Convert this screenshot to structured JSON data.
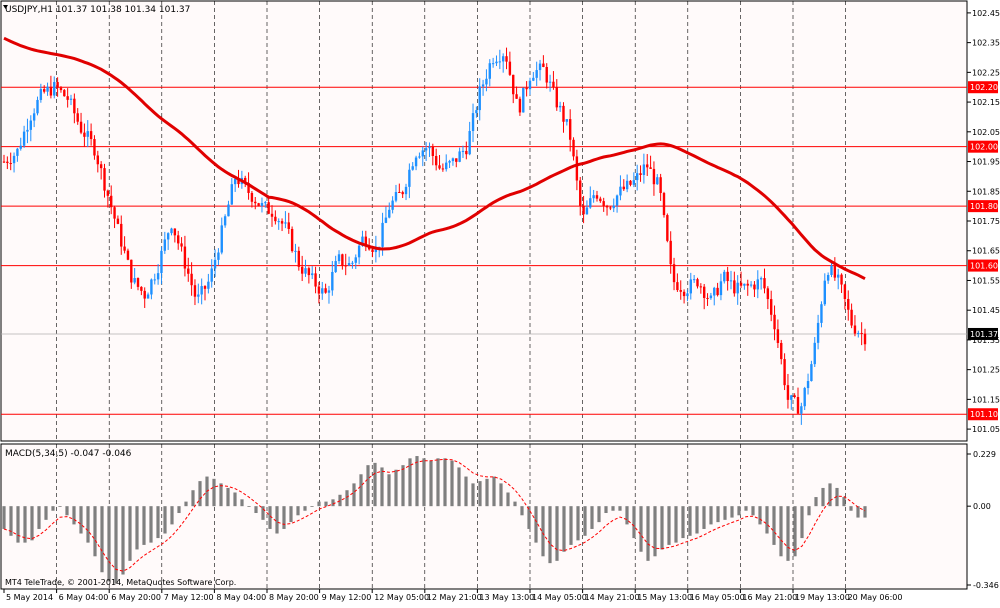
{
  "symbol_header": "USDJPY,H1  101.37 101.38 101.34 101.37",
  "macd_header": "MACD(5,34,5) -0.047 -0.046",
  "copyright": "MT4 TeleTrade, © 2001-2014, MetaQuotes Software Corp.",
  "colors": {
    "background": "#fffafa",
    "bull_candle": "#1e90ff",
    "bear_candle": "#ff0000",
    "ma_line": "#e00000",
    "level_line": "#ff0000",
    "grid": "#000000",
    "macd_hist": "#7f7f7f",
    "macd_signal": "#ff0000"
  },
  "chart_data": [
    {
      "type": "candlestick",
      "y_ticks": [
        "102.45",
        "102.35",
        "102.25",
        "102.15",
        "102.05",
        "101.95",
        "101.85",
        "101.75",
        "101.65",
        "101.55",
        "101.45",
        "101.35",
        "101.25",
        "101.15",
        "101.05"
      ],
      "ylim": [
        101.01,
        102.49
      ],
      "x_labels": [
        "5 May 2014",
        "6 May 04:00",
        "6 May 20:00",
        "7 May 12:00",
        "8 May 04:00",
        "8 May 20:00",
        "9 May 12:00",
        "12 May 05:00",
        "12 May 21:00",
        "13 May 13:00",
        "14 May 05:00",
        "14 May 21:00",
        "15 May 13:00",
        "16 May 05:00",
        "16 May 21:00",
        "19 May 13:00",
        "20 May 06:00"
      ],
      "levels": [
        {
          "label": "102.20",
          "value": 102.2
        },
        {
          "label": "102.00",
          "value": 102.0
        },
        {
          "label": "101.80",
          "value": 101.8
        },
        {
          "label": "101.60",
          "value": 101.6
        },
        {
          "label": "101.10",
          "value": 101.1
        }
      ],
      "current_price": {
        "label": "101.37",
        "value": 101.37
      },
      "price_path": [
        101.95,
        101.98,
        102.1,
        102.18,
        102.2,
        102.16,
        102.06,
        102.0,
        101.85,
        101.7,
        101.55,
        101.5,
        101.6,
        101.75,
        101.62,
        101.48,
        101.55,
        101.72,
        101.9,
        101.85,
        101.8,
        101.78,
        101.72,
        101.6,
        101.55,
        101.5,
        101.62,
        101.6,
        101.7,
        101.65,
        101.8,
        101.85,
        101.98,
        102.0,
        101.92,
        101.95,
        102.0,
        102.18,
        102.3,
        102.32,
        102.12,
        102.25,
        102.26,
        102.15,
        102.05,
        101.75,
        101.85,
        101.8,
        101.85,
        101.88,
        101.94,
        101.86,
        101.55,
        101.52,
        101.55,
        101.48,
        101.56,
        101.52,
        101.53,
        101.55,
        101.4,
        101.15,
        101.12,
        101.3,
        101.6,
        101.54,
        101.4,
        101.36
      ]
    },
    {
      "type": "bar",
      "name": "MACD(5,34,5)",
      "y_ticks": [
        "0.229",
        "0.00",
        "-0.346"
      ],
      "ylim": [
        -0.346,
        0.229
      ],
      "values": [
        -0.1,
        -0.13,
        -0.16,
        -0.16,
        -0.15,
        -0.1,
        -0.06,
        -0.02,
        0.0,
        -0.04,
        -0.08,
        -0.12,
        -0.16,
        -0.22,
        -0.29,
        -0.33,
        -0.34,
        -0.3,
        -0.24,
        -0.19,
        -0.17,
        -0.16,
        -0.14,
        -0.12,
        -0.08,
        -0.03,
        0.02,
        0.07,
        0.11,
        0.13,
        0.12,
        0.1,
        0.08,
        0.06,
        0.03,
        0.0,
        -0.03,
        -0.06,
        -0.1,
        -0.12,
        -0.1,
        -0.07,
        -0.04,
        -0.02,
        0.0,
        0.02,
        0.02,
        0.03,
        0.05,
        0.07,
        0.1,
        0.14,
        0.18,
        0.19,
        0.17,
        0.14,
        0.16,
        0.18,
        0.21,
        0.22,
        0.21,
        0.2,
        0.21,
        0.21,
        0.2,
        0.17,
        0.13,
        0.1,
        0.11,
        0.12,
        0.13,
        0.1,
        0.06,
        0.02,
        -0.04,
        -0.1,
        -0.16,
        -0.22,
        -0.25,
        -0.24,
        -0.2,
        -0.17,
        -0.15,
        -0.13,
        -0.1,
        -0.07,
        -0.03,
        -0.02,
        -0.02,
        -0.08,
        -0.14,
        -0.2,
        -0.24,
        -0.22,
        -0.19,
        -0.17,
        -0.16,
        -0.14,
        -0.13,
        -0.12,
        -0.1,
        -0.08,
        -0.07,
        -0.06,
        -0.05,
        -0.04,
        -0.02,
        -0.04,
        -0.08,
        -0.12,
        -0.17,
        -0.22,
        -0.24,
        -0.22,
        -0.14,
        -0.04,
        0.04,
        0.08,
        0.1,
        0.08,
        0.04,
        -0.02,
        -0.05,
        -0.05
      ]
    }
  ]
}
